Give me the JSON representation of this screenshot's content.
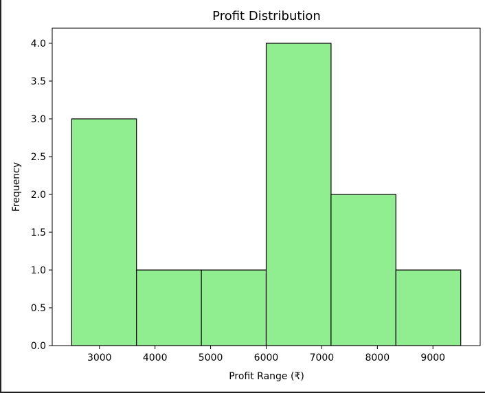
{
  "chart_data": {
    "type": "bar",
    "title": "Profit Distribution",
    "xlabel": "Profit Range (₹)",
    "ylabel": "Frequency",
    "bins": [
      {
        "start": 2500,
        "end": 3666.67,
        "count": 3
      },
      {
        "start": 3666.67,
        "end": 4833.33,
        "count": 1
      },
      {
        "start": 4833.33,
        "end": 6000,
        "count": 1
      },
      {
        "start": 6000,
        "end": 7166.67,
        "count": 4
      },
      {
        "start": 7166.67,
        "end": 8333.33,
        "count": 2
      },
      {
        "start": 8333.33,
        "end": 9500,
        "count": 1
      }
    ],
    "xlim": [
      2150,
      9850
    ],
    "ylim": [
      0,
      4.2
    ],
    "xticks": [
      3000,
      4000,
      5000,
      6000,
      7000,
      8000,
      9000
    ],
    "xtick_labels": [
      "3000",
      "4000",
      "5000",
      "6000",
      "7000",
      "8000",
      "9000"
    ],
    "yticks": [
      0,
      0.5,
      1.0,
      1.5,
      2.0,
      2.5,
      3.0,
      3.5,
      4.0
    ],
    "ytick_labels": [
      "0.0",
      "0.5",
      "1.0",
      "1.5",
      "2.0",
      "2.5",
      "3.0",
      "3.5",
      "4.0"
    ],
    "grid": false,
    "bar_color": "#90ee90",
    "edge_color": "#000000"
  }
}
